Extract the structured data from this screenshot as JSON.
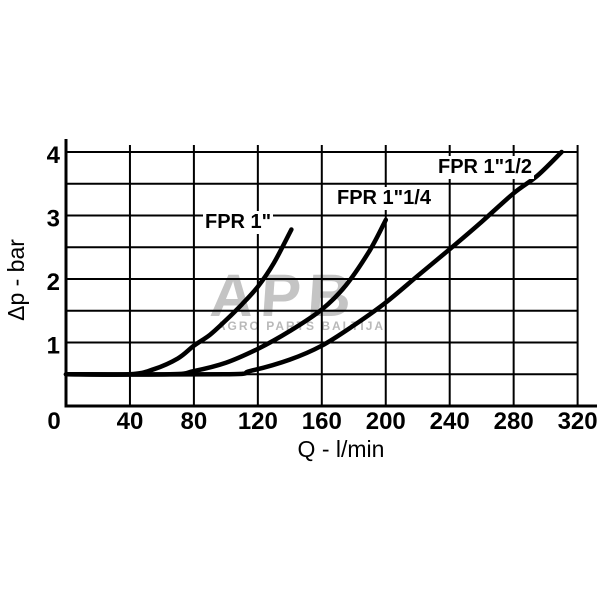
{
  "page": {
    "background": "#ffffff"
  },
  "chart_data": {
    "type": "line",
    "title": "",
    "xlabel": "Q - l/min",
    "ylabel": "Δp - bar",
    "xlim": [
      0,
      320
    ],
    "ylim": [
      0,
      4
    ],
    "x_ticks": [
      0,
      40,
      80,
      120,
      160,
      200,
      240,
      280,
      320
    ],
    "y_ticks": [
      1,
      2,
      3,
      4
    ],
    "origin_label": "0",
    "grid": {
      "visible": true,
      "x_step": 40,
      "y_step": 0.5
    },
    "legend_position": "labels-on-chart",
    "line_color": "#000000",
    "series": [
      {
        "name": "FPR 1\"",
        "points": [
          [
            0,
            0.5
          ],
          [
            40,
            0.5
          ],
          [
            55,
            0.58
          ],
          [
            70,
            0.75
          ],
          [
            80,
            0.95
          ],
          [
            90,
            1.12
          ],
          [
            100,
            1.35
          ],
          [
            110,
            1.6
          ],
          [
            120,
            1.88
          ],
          [
            130,
            2.25
          ],
          [
            141,
            2.78
          ]
        ]
      },
      {
        "name": "FPR 1\"1/4",
        "points": [
          [
            0,
            0.5
          ],
          [
            65,
            0.5
          ],
          [
            80,
            0.55
          ],
          [
            100,
            0.68
          ],
          [
            120,
            0.9
          ],
          [
            140,
            1.18
          ],
          [
            160,
            1.52
          ],
          [
            175,
            1.9
          ],
          [
            190,
            2.45
          ],
          [
            200,
            2.93
          ]
        ]
      },
      {
        "name": "FPR 1\"1/2",
        "points": [
          [
            0,
            0.5
          ],
          [
            100,
            0.5
          ],
          [
            115,
            0.55
          ],
          [
            140,
            0.73
          ],
          [
            160,
            0.95
          ],
          [
            180,
            1.27
          ],
          [
            200,
            1.63
          ],
          [
            220,
            2.05
          ],
          [
            240,
            2.47
          ],
          [
            260,
            2.9
          ],
          [
            280,
            3.35
          ],
          [
            295,
            3.63
          ],
          [
            310,
            4.0
          ]
        ]
      }
    ]
  },
  "watermark": {
    "logo": "APB",
    "subtitle": "AGRO PARTS BALTIJA",
    "colors": {
      "logo": "#c4c4c4",
      "subtitle": "#b9b9b9"
    }
  }
}
